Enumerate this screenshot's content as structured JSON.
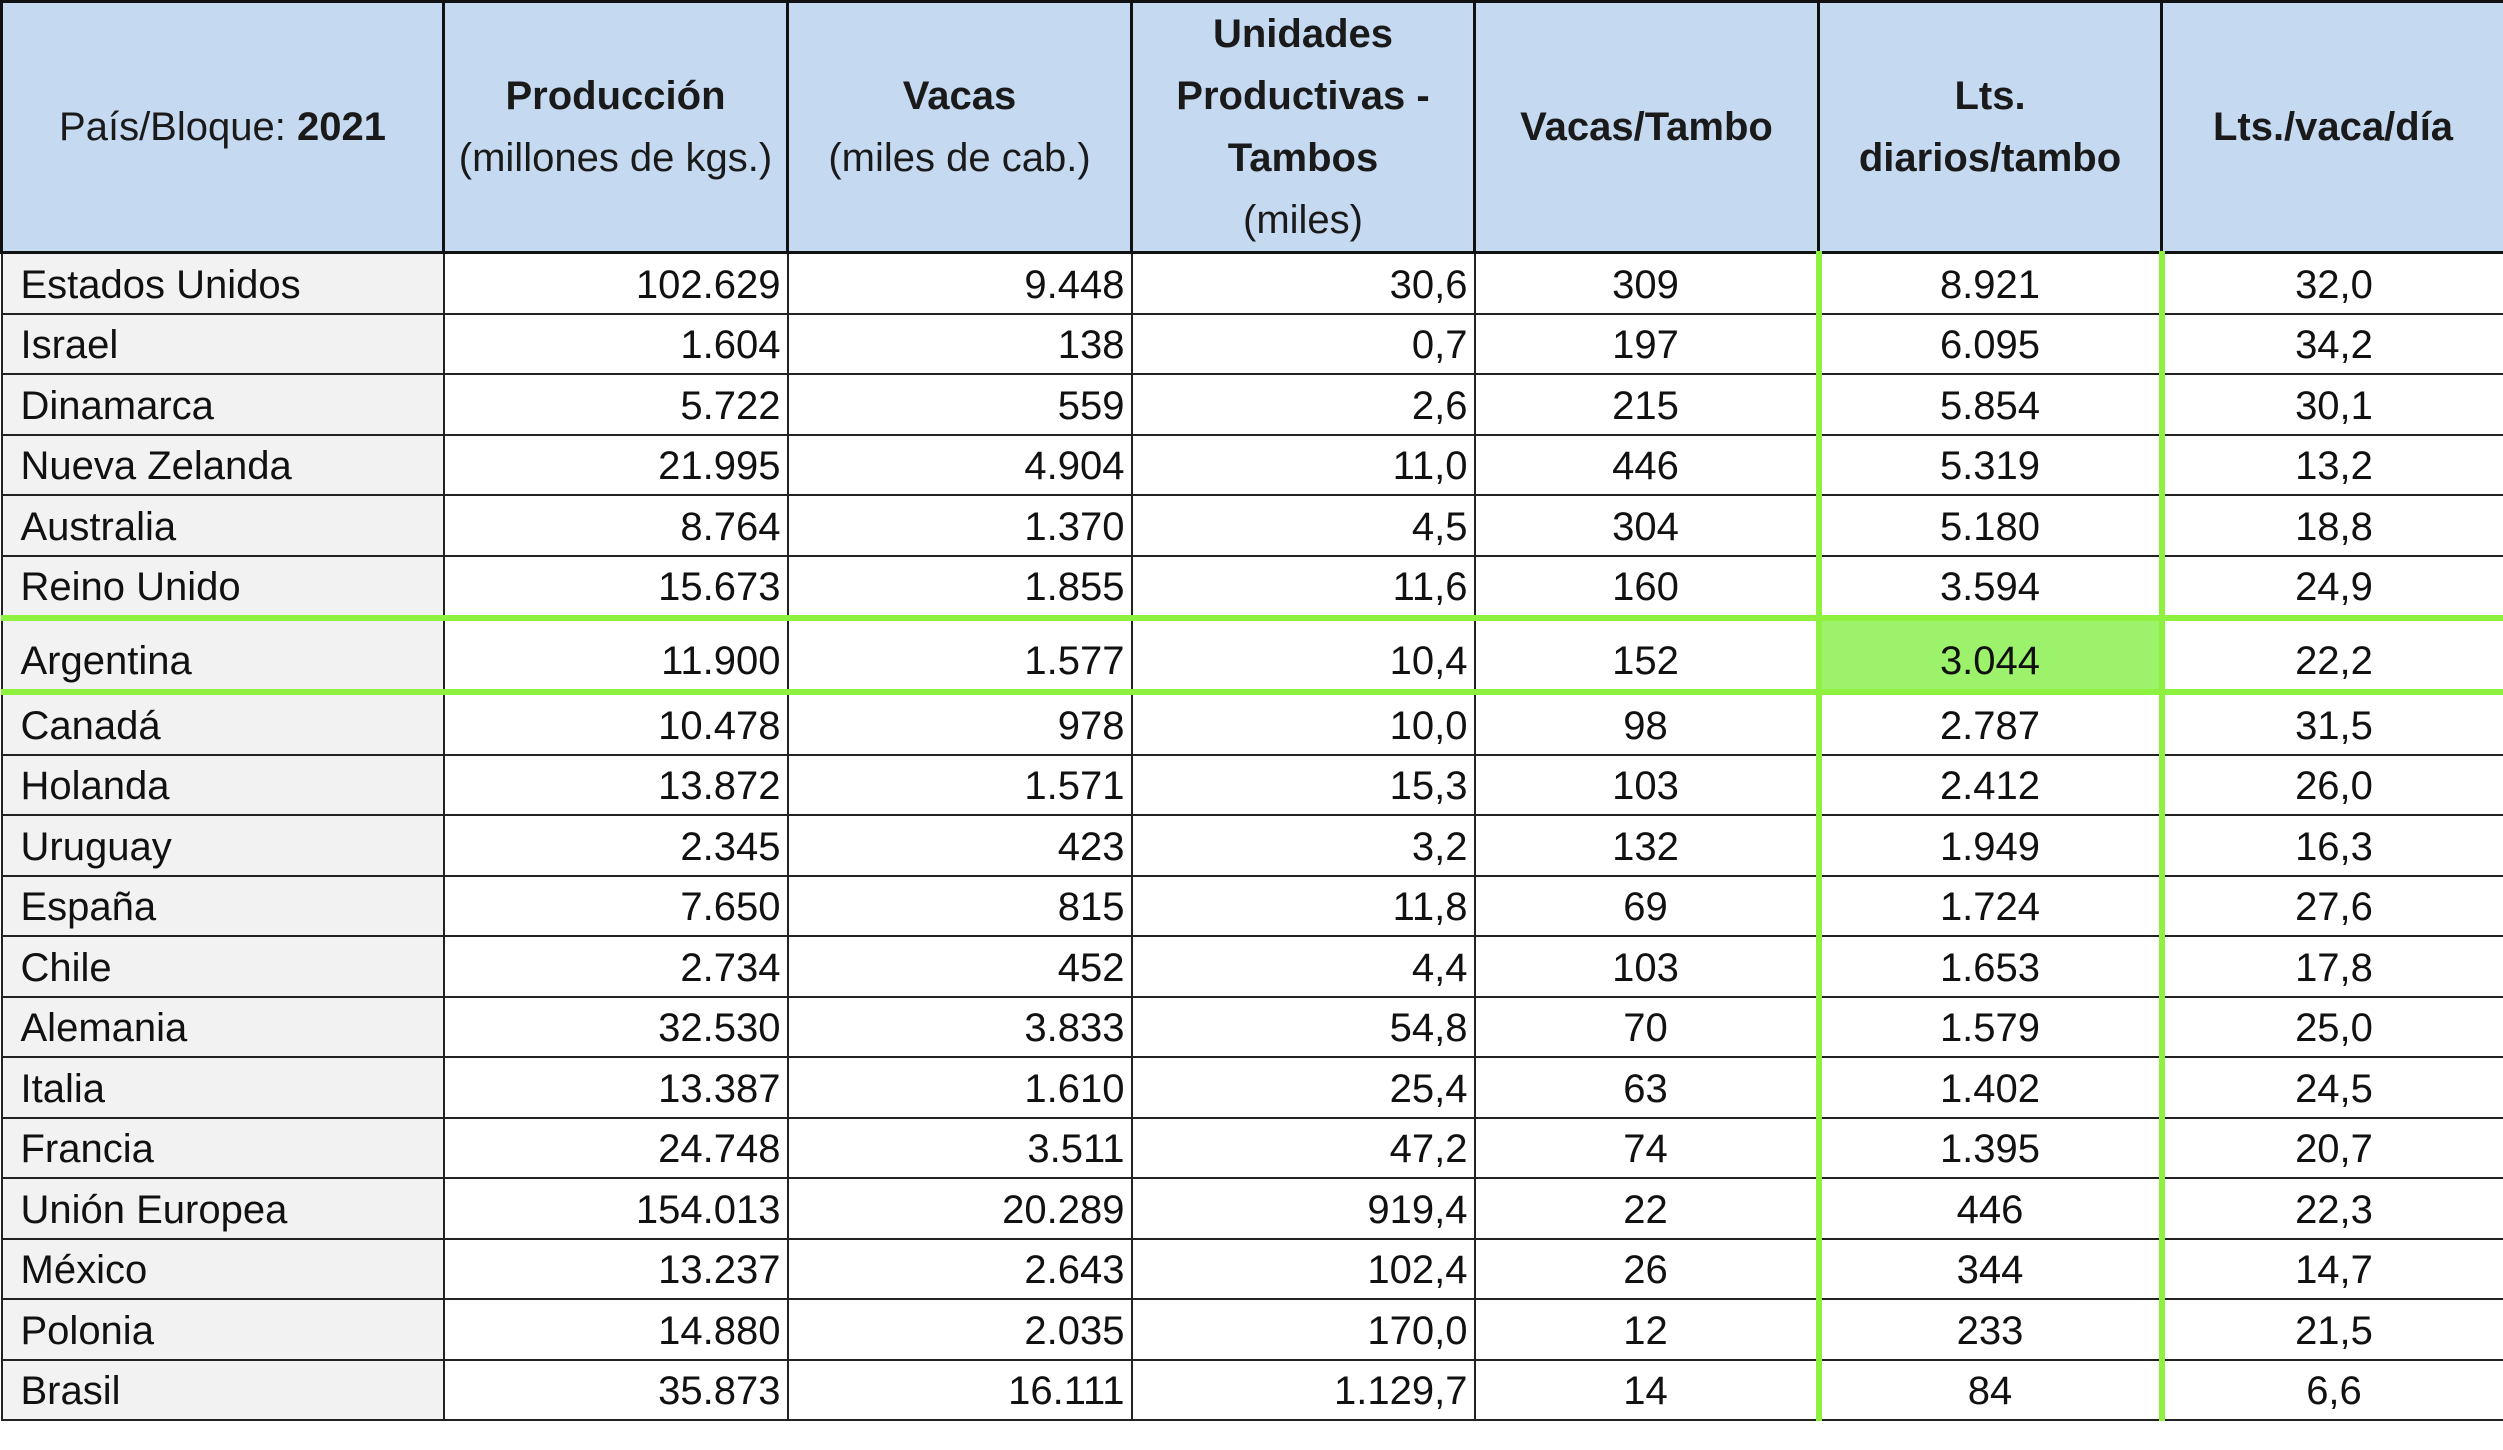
{
  "table": {
    "header": {
      "country": {
        "label": "País/Bloque: ",
        "year": "2021"
      },
      "production": {
        "title": "Producción",
        "unit": "(millones de kgs.)"
      },
      "cows": {
        "title": "Vacas",
        "unit": "(miles de cab.)"
      },
      "units": {
        "title_line1": "Unidades",
        "title_line2": "Productivas -",
        "title_line3": "Tambos",
        "unit": "(miles)"
      },
      "cows_per_farm": {
        "title": "Vacas/Tambo"
      },
      "liters_per_farm": {
        "title_line1": "Lts.",
        "title_line2": "diarios/tambo"
      },
      "liters_per_cow": {
        "title": "Lts./vaca/día"
      }
    },
    "highlight": {
      "row": "Argentina",
      "column": "Lts. diarios/tambo",
      "color": "#8ef03f"
    },
    "header_color": "#c5d9f1",
    "rows": [
      {
        "name": "Estados Unidos",
        "production": "102.629",
        "cows": "9.448",
        "units": "30,6",
        "cows_per_farm": "309",
        "liters_per_farm": "8.921",
        "liters_per_cow": "32,0"
      },
      {
        "name": "Israel",
        "production": "1.604",
        "cows": "138",
        "units": "0,7",
        "cows_per_farm": "197",
        "liters_per_farm": "6.095",
        "liters_per_cow": "34,2"
      },
      {
        "name": "Dinamarca",
        "production": "5.722",
        "cows": "559",
        "units": "2,6",
        "cows_per_farm": "215",
        "liters_per_farm": "5.854",
        "liters_per_cow": "30,1"
      },
      {
        "name": "Nueva Zelanda",
        "production": "21.995",
        "cows": "4.904",
        "units": "11,0",
        "cows_per_farm": "446",
        "liters_per_farm": "5.319",
        "liters_per_cow": "13,2"
      },
      {
        "name": "Australia",
        "production": "8.764",
        "cows": "1.370",
        "units": "4,5",
        "cows_per_farm": "304",
        "liters_per_farm": "5.180",
        "liters_per_cow": "18,8"
      },
      {
        "name": "Reino Unido",
        "production": "15.673",
        "cows": "1.855",
        "units": "11,6",
        "cows_per_farm": "160",
        "liters_per_farm": "3.594",
        "liters_per_cow": "24,9"
      },
      {
        "name": "Argentina",
        "production": "11.900",
        "cows": "1.577",
        "units": "10,4",
        "cows_per_farm": "152",
        "liters_per_farm": "3.044",
        "liters_per_cow": "22,2"
      },
      {
        "name": "Canadá",
        "production": "10.478",
        "cows": "978",
        "units": "10,0",
        "cows_per_farm": "98",
        "liters_per_farm": "2.787",
        "liters_per_cow": "31,5"
      },
      {
        "name": "Holanda",
        "production": "13.872",
        "cows": "1.571",
        "units": "15,3",
        "cows_per_farm": "103",
        "liters_per_farm": "2.412",
        "liters_per_cow": "26,0"
      },
      {
        "name": "Uruguay",
        "production": "2.345",
        "cows": "423",
        "units": "3,2",
        "cows_per_farm": "132",
        "liters_per_farm": "1.949",
        "liters_per_cow": "16,3"
      },
      {
        "name": "España",
        "production": "7.650",
        "cows": "815",
        "units": "11,8",
        "cows_per_farm": "69",
        "liters_per_farm": "1.724",
        "liters_per_cow": "27,6"
      },
      {
        "name": "Chile",
        "production": "2.734",
        "cows": "452",
        "units": "4,4",
        "cows_per_farm": "103",
        "liters_per_farm": "1.653",
        "liters_per_cow": "17,8"
      },
      {
        "name": "Alemania",
        "production": "32.530",
        "cows": "3.833",
        "units": "54,8",
        "cows_per_farm": "70",
        "liters_per_farm": "1.579",
        "liters_per_cow": "25,0"
      },
      {
        "name": "Italia",
        "production": "13.387",
        "cows": "1.610",
        "units": "25,4",
        "cows_per_farm": "63",
        "liters_per_farm": "1.402",
        "liters_per_cow": "24,5"
      },
      {
        "name": "Francia",
        "production": "24.748",
        "cows": "3.511",
        "units": "47,2",
        "cows_per_farm": "74",
        "liters_per_farm": "1.395",
        "liters_per_cow": "20,7"
      },
      {
        "name": "Unión Europea",
        "production": "154.013",
        "cows": "20.289",
        "units": "919,4",
        "cows_per_farm": "22",
        "liters_per_farm": "446",
        "liters_per_cow": "22,3"
      },
      {
        "name": "México",
        "production": "13.237",
        "cows": "2.643",
        "units": "102,4",
        "cows_per_farm": "26",
        "liters_per_farm": "344",
        "liters_per_cow": "14,7"
      },
      {
        "name": "Polonia",
        "production": "14.880",
        "cows": "2.035",
        "units": "170,0",
        "cows_per_farm": "12",
        "liters_per_farm": "233",
        "liters_per_cow": "21,5"
      },
      {
        "name": "Brasil",
        "production": "35.873",
        "cows": "16.111",
        "units": "1.129,7",
        "cows_per_farm": "14",
        "liters_per_farm": "84",
        "liters_per_cow": "6,6"
      }
    ]
  }
}
